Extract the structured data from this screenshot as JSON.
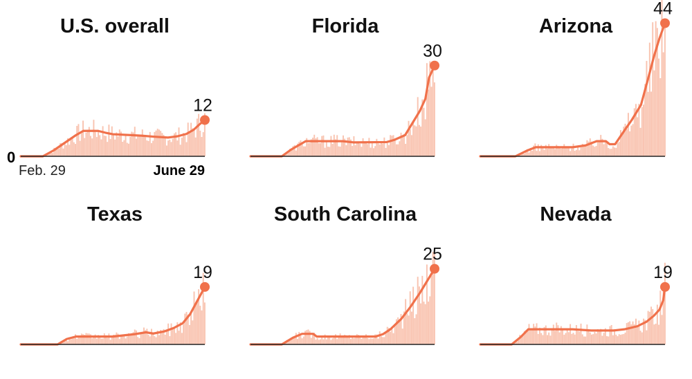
{
  "chart_data": [
    {
      "type": "bar",
      "title": "U.S. overall",
      "end_value": 12,
      "start_label": "Feb. 29",
      "end_label": "June 29",
      "zero_label": "0",
      "x_range": [
        "Feb. 29",
        "June 29"
      ],
      "ylim": [
        0,
        48
      ],
      "avg_points": [
        [
          0,
          0
        ],
        [
          0.12,
          0
        ],
        [
          0.18,
          2
        ],
        [
          0.3,
          7
        ],
        [
          0.34,
          8.4
        ],
        [
          0.42,
          8.4
        ],
        [
          0.46,
          7.8
        ],
        [
          0.5,
          7.3
        ],
        [
          0.6,
          7
        ],
        [
          0.66,
          6.8
        ],
        [
          0.72,
          6.5
        ],
        [
          0.8,
          6.2
        ],
        [
          0.85,
          6.6
        ],
        [
          0.9,
          7.4
        ],
        [
          0.94,
          8.8
        ],
        [
          0.97,
          10.5
        ],
        [
          1,
          12
        ]
      ],
      "colors": {
        "line": "#f0714b",
        "bars": "#f9c4b1"
      }
    },
    {
      "type": "bar",
      "title": "Florida",
      "end_value": 30,
      "x_range": [
        "Feb. 29",
        "June 29"
      ],
      "ylim": [
        0,
        48
      ],
      "avg_points": [
        [
          0,
          0
        ],
        [
          0.17,
          0
        ],
        [
          0.22,
          2.2
        ],
        [
          0.3,
          5
        ],
        [
          0.32,
          5
        ],
        [
          0.5,
          5
        ],
        [
          0.56,
          4.6
        ],
        [
          0.74,
          4.7
        ],
        [
          0.78,
          5.4
        ],
        [
          0.84,
          7
        ],
        [
          0.88,
          11
        ],
        [
          0.92,
          15
        ],
        [
          0.95,
          19
        ],
        [
          0.97,
          26
        ],
        [
          1,
          30
        ]
      ],
      "colors": {
        "line": "#f0714b",
        "bars": "#f9c4b1"
      }
    },
    {
      "type": "bar",
      "title": "Arizona",
      "end_value": 44,
      "x_range": [
        "Feb. 29",
        "June 29"
      ],
      "ylim": [
        0,
        48
      ],
      "avg_points": [
        [
          0,
          0
        ],
        [
          0.19,
          0
        ],
        [
          0.25,
          1.8
        ],
        [
          0.3,
          3
        ],
        [
          0.5,
          3
        ],
        [
          0.57,
          3.6
        ],
        [
          0.63,
          5
        ],
        [
          0.68,
          5
        ],
        [
          0.7,
          4
        ],
        [
          0.73,
          4
        ],
        [
          0.78,
          8.5
        ],
        [
          0.82,
          12
        ],
        [
          0.87,
          17
        ],
        [
          0.91,
          26
        ],
        [
          0.94,
          33
        ],
        [
          0.97,
          39
        ],
        [
          1,
          44
        ]
      ],
      "colors": {
        "line": "#f0714b",
        "bars": "#f9c4b1"
      }
    },
    {
      "type": "bar",
      "title": "Texas",
      "end_value": 19,
      "x_range": [
        "Feb. 29",
        "June 29"
      ],
      "ylim": [
        0,
        48
      ],
      "avg_points": [
        [
          0,
          0
        ],
        [
          0.2,
          0
        ],
        [
          0.25,
          1.8
        ],
        [
          0.3,
          2.6
        ],
        [
          0.5,
          2.6
        ],
        [
          0.62,
          3.4
        ],
        [
          0.68,
          4
        ],
        [
          0.72,
          3.6
        ],
        [
          0.78,
          4.3
        ],
        [
          0.83,
          5.4
        ],
        [
          0.88,
          7
        ],
        [
          0.92,
          10
        ],
        [
          0.96,
          14.5
        ],
        [
          1,
          19
        ]
      ],
      "colors": {
        "line": "#f0714b",
        "bars": "#f9c4b1"
      }
    },
    {
      "type": "bar",
      "title": "South Carolina",
      "end_value": 25,
      "x_range": [
        "Feb. 29",
        "June 29"
      ],
      "ylim": [
        0,
        48
      ],
      "avg_points": [
        [
          0,
          0
        ],
        [
          0.17,
          0
        ],
        [
          0.23,
          2.2
        ],
        [
          0.28,
          3.5
        ],
        [
          0.34,
          3.5
        ],
        [
          0.36,
          2.6
        ],
        [
          0.68,
          2.6
        ],
        [
          0.72,
          3.4
        ],
        [
          0.76,
          5
        ],
        [
          0.82,
          8.5
        ],
        [
          0.87,
          12.5
        ],
        [
          0.92,
          17
        ],
        [
          0.96,
          21
        ],
        [
          1,
          25
        ]
      ],
      "colors": {
        "line": "#f0714b",
        "bars": "#f9c4b1"
      }
    },
    {
      "type": "bar",
      "title": "Nevada",
      "end_value": 19,
      "x_range": [
        "Feb. 29",
        "June 29"
      ],
      "ylim": [
        0,
        48
      ],
      "avg_points": [
        [
          0,
          0
        ],
        [
          0.17,
          0
        ],
        [
          0.22,
          2.5
        ],
        [
          0.26,
          5
        ],
        [
          0.5,
          5
        ],
        [
          0.6,
          4.6
        ],
        [
          0.72,
          4.6
        ],
        [
          0.78,
          5
        ],
        [
          0.85,
          6
        ],
        [
          0.9,
          7.5
        ],
        [
          0.94,
          9.5
        ],
        [
          0.97,
          11.5
        ],
        [
          0.99,
          14.5
        ],
        [
          1,
          19
        ]
      ],
      "colors": {
        "line": "#f0714b",
        "bars": "#f9c4b1"
      }
    }
  ]
}
